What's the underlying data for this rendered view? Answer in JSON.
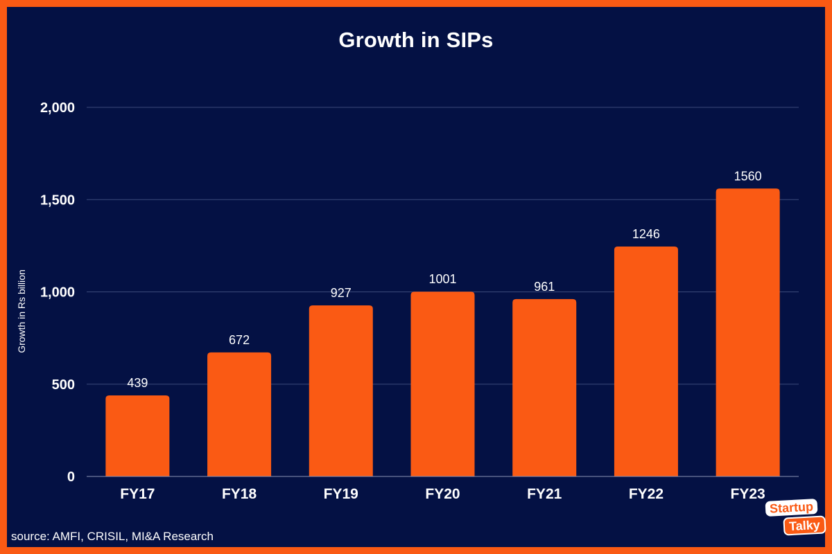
{
  "chart_data": {
    "type": "bar",
    "title": "Growth in SIPs",
    "ylabel": "Growth in Rs billion",
    "xlabel": "",
    "categories": [
      "FY17",
      "FY18",
      "FY19",
      "FY20",
      "FY21",
      "FY22",
      "FY23"
    ],
    "values": [
      439,
      672,
      927,
      1001,
      961,
      1246,
      1560
    ],
    "data_labels": [
      "439",
      "672",
      "927",
      "1001",
      "961",
      "1246",
      "1560"
    ],
    "ylim": [
      0,
      2000
    ],
    "yticks": [
      0,
      500,
      1000,
      1500,
      2000
    ],
    "ytick_labels": [
      "0",
      "500",
      "1,000",
      "1,500",
      "2,000"
    ],
    "grid": true,
    "legend": "none",
    "bar_color": "#fa5a14",
    "background_color": "#041144"
  },
  "source_note": "source: AMFI, CRISIL, MI&A Research",
  "logo": {
    "line1": "Startup",
    "line2": "Talky"
  }
}
